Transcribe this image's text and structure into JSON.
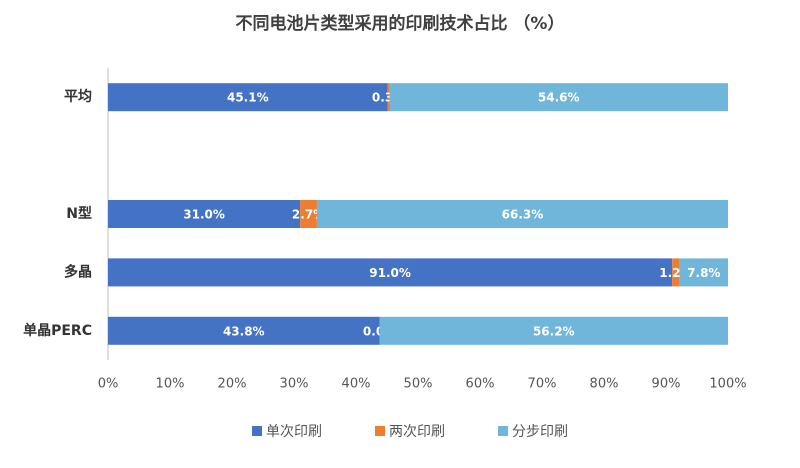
{
  "chart_data": {
    "type": "stacked-barh",
    "title": "不同电池片类型采用的印刷技术占比 （%）",
    "categories": [
      "平均",
      null,
      "N型",
      "多晶",
      "单晶PERC"
    ],
    "series": [
      {
        "name": "单次印刷",
        "color": "#4472c4",
        "values": [
          45.1,
          null,
          31.0,
          91.0,
          43.8
        ],
        "value_labels": [
          "45.1%",
          null,
          "31.0%",
          "91.0%",
          "43.8%"
        ]
      },
      {
        "name": "两次印刷",
        "color": "#ed7d31",
        "values": [
          0.3,
          null,
          2.7,
          1.2,
          0.0
        ],
        "value_labels": [
          "0.3%",
          null,
          "2.7%",
          "1.2%",
          "0.0%"
        ]
      },
      {
        "name": "分步印刷",
        "color": "#70b5da",
        "values": [
          54.6,
          null,
          66.3,
          7.8,
          56.2
        ],
        "value_labels": [
          "54.6%",
          null,
          "66.3%",
          "7.8%",
          "56.2%"
        ]
      }
    ],
    "xlim": [
      0,
      100
    ],
    "xticks": [
      {
        "value": 0,
        "label": "0%"
      },
      {
        "value": 10,
        "label": "10%"
      },
      {
        "value": 20,
        "label": "20%"
      },
      {
        "value": 30,
        "label": "30%"
      },
      {
        "value": 40,
        "label": "40%"
      },
      {
        "value": 50,
        "label": "50%"
      },
      {
        "value": 60,
        "label": "60%"
      },
      {
        "value": 70,
        "label": "70%"
      },
      {
        "value": 80,
        "label": "80%"
      },
      {
        "value": 90,
        "label": "90%"
      },
      {
        "value": 100,
        "label": "100%"
      }
    ],
    "legend": "bottom"
  }
}
